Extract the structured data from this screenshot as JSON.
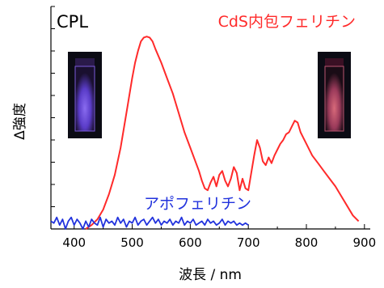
{
  "chart_data": {
    "type": "line",
    "title": "CPL",
    "xlabel": "波長 / nm",
    "ylabel": "Δ強度",
    "xlim": [
      360,
      910
    ],
    "ylim": [
      0,
      1.0
    ],
    "xticks": [
      400,
      500,
      600,
      700,
      800,
      900
    ],
    "grid": false,
    "colors": {
      "cds": "#ff2a2a",
      "apo": "#2233dd",
      "axis": "#000000"
    },
    "series": [
      {
        "name": "CdS内包フェリチン",
        "color": "#ff2a2a",
        "x": [
          420,
          430,
          440,
          450,
          460,
          470,
          480,
          490,
          500,
          505,
          510,
          515,
          520,
          525,
          530,
          535,
          540,
          550,
          560,
          570,
          580,
          590,
          600,
          610,
          615,
          620,
          625,
          630,
          635,
          640,
          645,
          650,
          655,
          660,
          665,
          670,
          675,
          680,
          685,
          690,
          695,
          700,
          705,
          710,
          715,
          720,
          725,
          730,
          735,
          740,
          745,
          750,
          755,
          760,
          765,
          770,
          775,
          780,
          785,
          790,
          795,
          800,
          810,
          820,
          830,
          840,
          850,
          860,
          870,
          880,
          890
        ],
        "y": [
          0.0,
          0.02,
          0.05,
          0.1,
          0.18,
          0.28,
          0.42,
          0.6,
          0.78,
          0.86,
          0.92,
          0.97,
          0.99,
          0.995,
          0.99,
          0.97,
          0.93,
          0.86,
          0.78,
          0.7,
          0.6,
          0.5,
          0.42,
          0.34,
          0.3,
          0.25,
          0.21,
          0.2,
          0.24,
          0.27,
          0.22,
          0.28,
          0.3,
          0.25,
          0.22,
          0.26,
          0.32,
          0.29,
          0.2,
          0.26,
          0.21,
          0.2,
          0.29,
          0.38,
          0.46,
          0.42,
          0.35,
          0.33,
          0.37,
          0.34,
          0.38,
          0.41,
          0.44,
          0.46,
          0.49,
          0.5,
          0.53,
          0.56,
          0.55,
          0.5,
          0.47,
          0.44,
          0.38,
          0.34,
          0.3,
          0.26,
          0.22,
          0.17,
          0.12,
          0.07,
          0.04
        ]
      },
      {
        "name": "アポフェリチン",
        "color": "#2233dd",
        "x": [
          360,
          365,
          370,
          375,
          380,
          385,
          390,
          395,
          400,
          405,
          410,
          415,
          420,
          425,
          430,
          435,
          440,
          445,
          450,
          455,
          460,
          465,
          470,
          475,
          480,
          485,
          490,
          495,
          500,
          505,
          510,
          515,
          520,
          525,
          530,
          535,
          540,
          545,
          550,
          555,
          560,
          565,
          570,
          575,
          580,
          585,
          590,
          595,
          600,
          605,
          610,
          615,
          620,
          625,
          630,
          635,
          640,
          645,
          650,
          655,
          660,
          665,
          670,
          675,
          680,
          685,
          690,
          695,
          700
        ],
        "y": [
          0.04,
          0.03,
          0.06,
          0.02,
          0.05,
          0.0,
          0.04,
          0.06,
          0.02,
          0.05,
          0.03,
          0.0,
          0.04,
          0.01,
          0.05,
          0.03,
          0.02,
          0.06,
          0.01,
          0.05,
          0.03,
          0.04,
          0.02,
          0.06,
          0.03,
          0.05,
          0.01,
          0.04,
          0.03,
          0.06,
          0.02,
          0.04,
          0.05,
          0.02,
          0.04,
          0.06,
          0.03,
          0.05,
          0.02,
          0.04,
          0.03,
          0.05,
          0.02,
          0.04,
          0.03,
          0.06,
          0.02,
          0.04,
          0.03,
          0.05,
          0.02,
          0.03,
          0.04,
          0.02,
          0.05,
          0.03,
          0.04,
          0.02,
          0.03,
          0.05,
          0.02,
          0.04,
          0.03,
          0.04,
          0.02,
          0.03,
          0.02,
          0.03,
          0.02
        ]
      }
    ]
  }
}
